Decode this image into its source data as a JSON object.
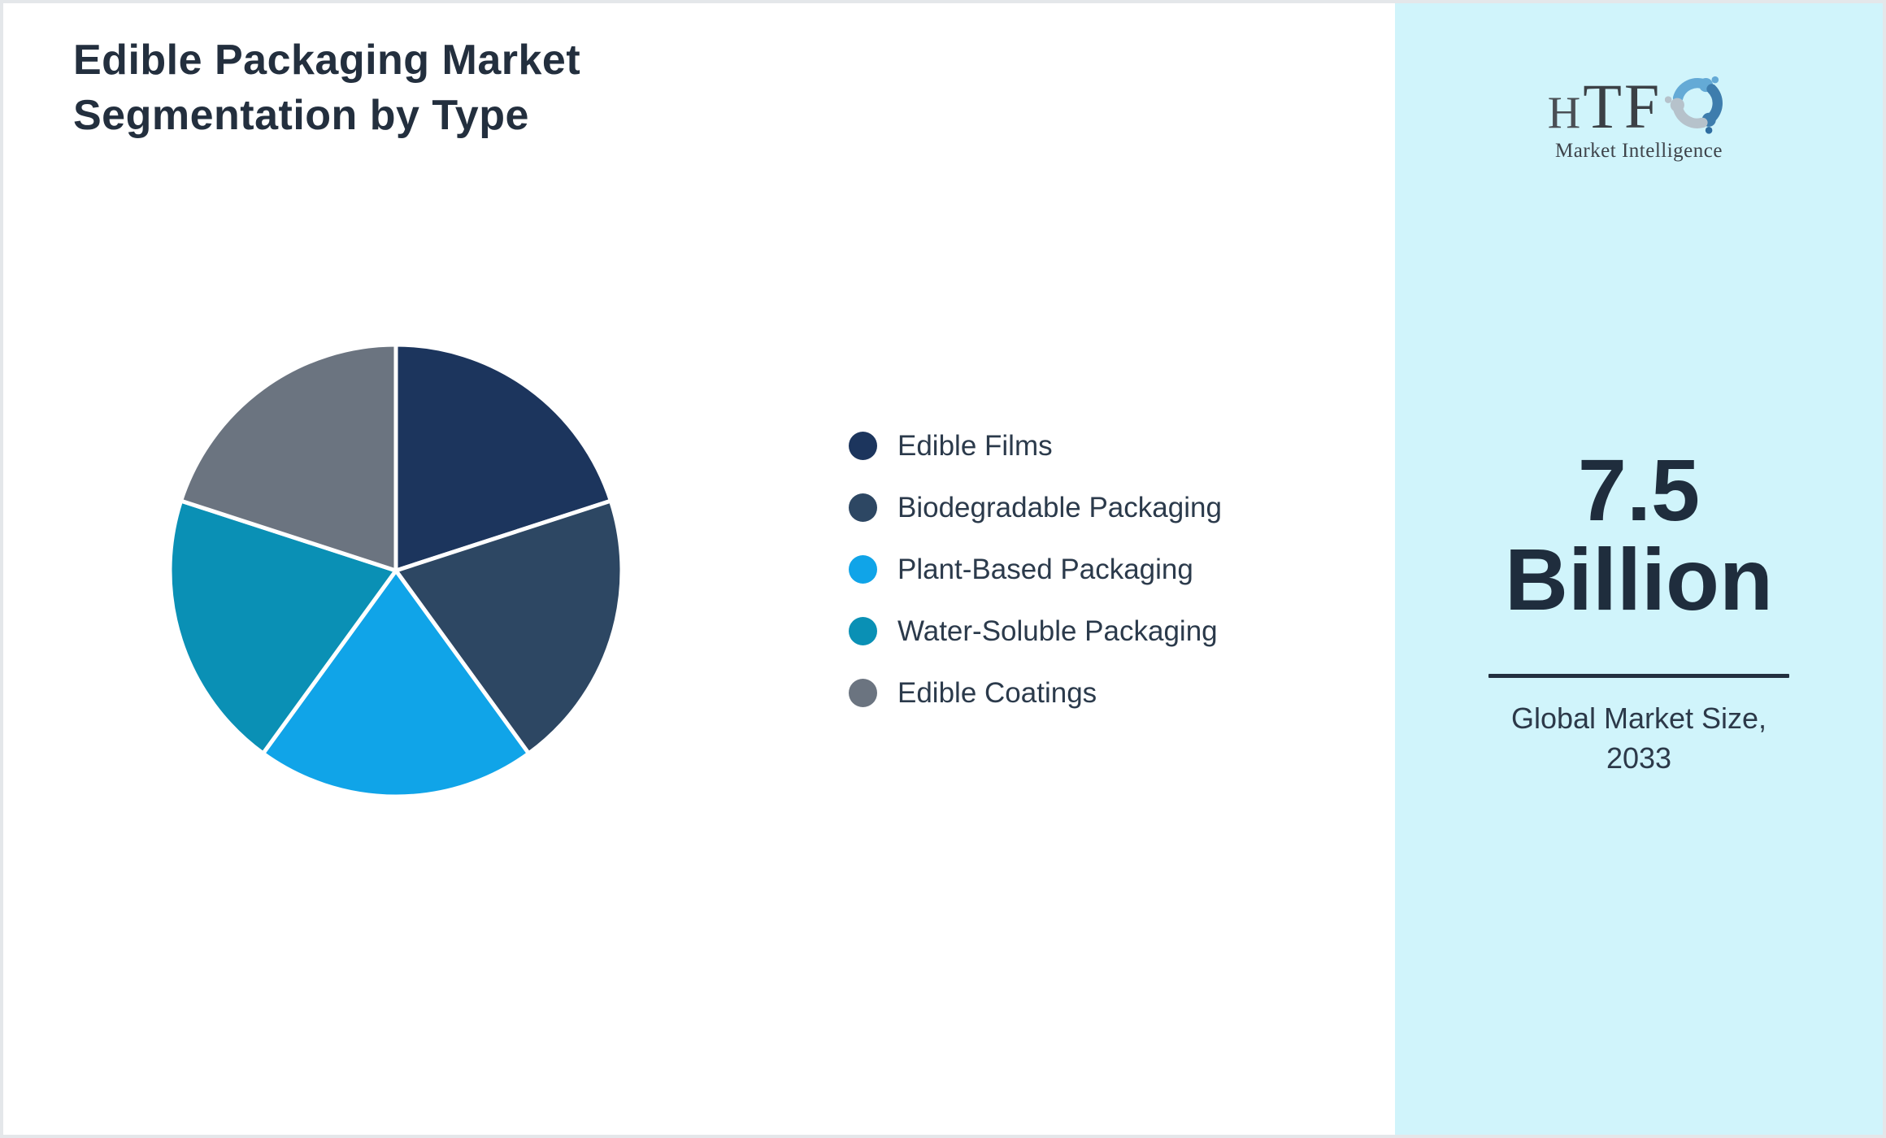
{
  "page": {
    "title_line1": "Edible Packaging Market",
    "title_line2": "Segmentation by Type"
  },
  "chart_data": {
    "type": "pie",
    "title": "Edible Packaging Market Segmentation by Type",
    "categories": [
      "Edible Films",
      "Biodegradable Packaging",
      "Plant-Based Packaging",
      "Water-Soluble Packaging",
      "Edible Coatings"
    ],
    "values": [
      20,
      20,
      20,
      20,
      20
    ],
    "unit": "% (equal slices, estimated from geometry)",
    "colors": [
      "#1c355d",
      "#2d4763",
      "#10a4e8",
      "#0a90b5",
      "#6b7480"
    ],
    "start_angle_deg": 0,
    "direction": "clockwise",
    "slice_border": {
      "color": "#ffffff",
      "width": 5
    },
    "legend_position": "right-of-chart"
  },
  "sidebar": {
    "background": "#d0f4fb",
    "logo": {
      "text_small": "H",
      "text_large": "TF",
      "subtext": "Market Intelligence",
      "swirl_colors": [
        "#64aad6",
        "#3e7dad",
        "#b6c2cb"
      ],
      "swirl_dot_colors": [
        "#64aad6",
        "#2e6da0",
        "#b6c2cb"
      ]
    },
    "stat": {
      "value_line1": "7.5",
      "value_line2": "Billion",
      "label_line1": "Global Market Size,",
      "label_line2": "2033",
      "divider_color": "#222f3f"
    }
  }
}
